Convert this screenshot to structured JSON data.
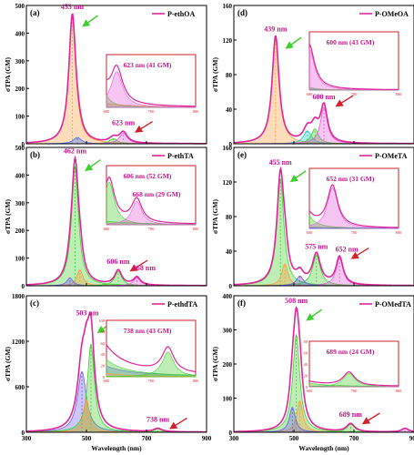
{
  "chart_data": [
    {
      "type": "line",
      "panel_label": "(a)",
      "legend": "P-ethOA",
      "ylabel": "σTPA (GM)",
      "xlim": [
        300,
        900
      ],
      "ylim": [
        0,
        500
      ],
      "yticks": [
        0,
        100,
        200,
        300,
        400,
        500
      ],
      "peaks": [
        {
          "x": 453,
          "y": 470
        },
        {
          "x": 623,
          "y": 41
        }
      ],
      "annotations": [
        {
          "text": "453 nm",
          "x": 453,
          "y": 470
        },
        {
          "text": "623 nm",
          "x": 623,
          "y": 41
        }
      ],
      "inset": {
        "label": "623 nm (41 GM)",
        "xlim": [
          600,
          800
        ],
        "xticks": [
          600,
          700,
          800
        ],
        "peak": 623,
        "max": 41
      }
    },
    {
      "type": "line",
      "panel_label": "(b)",
      "legend": "P-ethTA",
      "ylabel": "σTPA (GM)",
      "xlim": [
        300,
        900
      ],
      "ylim": [
        0,
        500
      ],
      "yticks": [
        0,
        100,
        200,
        300,
        400,
        500
      ],
      "peaks": [
        {
          "x": 462,
          "y": 462
        },
        {
          "x": 606,
          "y": 52
        },
        {
          "x": 668,
          "y": 29
        }
      ],
      "annotations": [
        {
          "text": "462 nm",
          "x": 462,
          "y": 462
        },
        {
          "text": "606 nm",
          "x": 606,
          "y": 52
        },
        {
          "text": "668 nm",
          "x": 668,
          "y": 29
        }
      ],
      "inset": {
        "label": "606 nm (52 GM)",
        "label2": "668 nm (29 GM)",
        "xlim": [
          600,
          800
        ],
        "xticks": [
          600,
          700,
          800
        ]
      }
    },
    {
      "type": "line",
      "panel_label": "(c)",
      "legend": "P-ethdTA",
      "ylabel": "σTPA (GM)",
      "xlabel": "Wavelength (nm)",
      "xlim": [
        300,
        900
      ],
      "ylim": [
        0,
        1800
      ],
      "yticks": [
        0,
        600,
        1200,
        1800
      ],
      "xticks": [
        300,
        500,
        700,
        900
      ],
      "peaks": [
        {
          "x": 503,
          "y": 1480
        },
        {
          "x": 738,
          "y": 43
        }
      ],
      "annotations": [
        {
          "text": "503 nm",
          "x": 503,
          "y": 1480
        },
        {
          "text": "738 nm",
          "x": 738,
          "y": 43
        }
      ],
      "inset": {
        "label": "738 nm (43 GM)",
        "xlim": [
          600,
          800
        ],
        "xticks": [
          600,
          700,
          800
        ],
        "ylim": [
          0,
          100
        ],
        "yticks": [
          0,
          20,
          40,
          60,
          80,
          100
        ]
      }
    },
    {
      "type": "line",
      "panel_label": "(d)",
      "legend": "P-OMeOA",
      "ylabel": "σTPA (GM)",
      "xlim": [
        300,
        900
      ],
      "ylim": [
        0,
        160
      ],
      "yticks": [
        0,
        40,
        80,
        120,
        160
      ],
      "peaks": [
        {
          "x": 439,
          "y": 125
        },
        {
          "x": 600,
          "y": 43
        }
      ],
      "annotations": [
        {
          "text": "439 nm",
          "x": 439,
          "y": 125
        },
        {
          "text": "600 nm",
          "x": 600,
          "y": 43
        }
      ],
      "inset": {
        "label": "600 nm (43 GM)",
        "xlim": [
          600,
          800
        ],
        "xticks": [
          600,
          700,
          800
        ]
      }
    },
    {
      "type": "line",
      "panel_label": "(e)",
      "legend": "P-OMeTA",
      "ylabel": "σTPA (GM)",
      "xlim": [
        300,
        900
      ],
      "ylim": [
        0,
        160
      ],
      "yticks": [
        0,
        40,
        80,
        120,
        160
      ],
      "peaks": [
        {
          "x": 455,
          "y": 135
        },
        {
          "x": 575,
          "y": 34
        },
        {
          "x": 652,
          "y": 31
        }
      ],
      "annotations": [
        {
          "text": "455 nm",
          "x": 455,
          "y": 135
        },
        {
          "text": "575 nm",
          "x": 575,
          "y": 34
        },
        {
          "text": "652 nm",
          "x": 652,
          "y": 31
        }
      ],
      "inset": {
        "label": "652 nm (31 GM)",
        "xlim": [
          600,
          800
        ],
        "xticks": [
          600,
          700,
          800
        ]
      }
    },
    {
      "type": "line",
      "panel_label": "(f)",
      "legend": "P-OMedTA",
      "ylabel": "σTPA (GM)",
      "xlabel": "Wavelength (nm)",
      "xlim": [
        300,
        900
      ],
      "ylim": [
        0,
        400
      ],
      "yticks": [
        0,
        100,
        200,
        300,
        400
      ],
      "xticks": [
        300,
        500,
        700,
        900
      ],
      "peaks": [
        {
          "x": 508,
          "y": 365
        },
        {
          "x": 689,
          "y": 24
        }
      ],
      "annotations": [
        {
          "text": "508 nm",
          "x": 508,
          "y": 365
        },
        {
          "text": "689 nm",
          "x": 689,
          "y": 24
        }
      ],
      "inset": {
        "label": "689 nm (24 GM)",
        "xlim": [
          600,
          800
        ],
        "xticks": [
          600,
          700,
          800
        ],
        "ylim": [
          0,
          80
        ],
        "yticks": [
          0,
          20,
          40,
          60,
          80
        ]
      }
    }
  ]
}
